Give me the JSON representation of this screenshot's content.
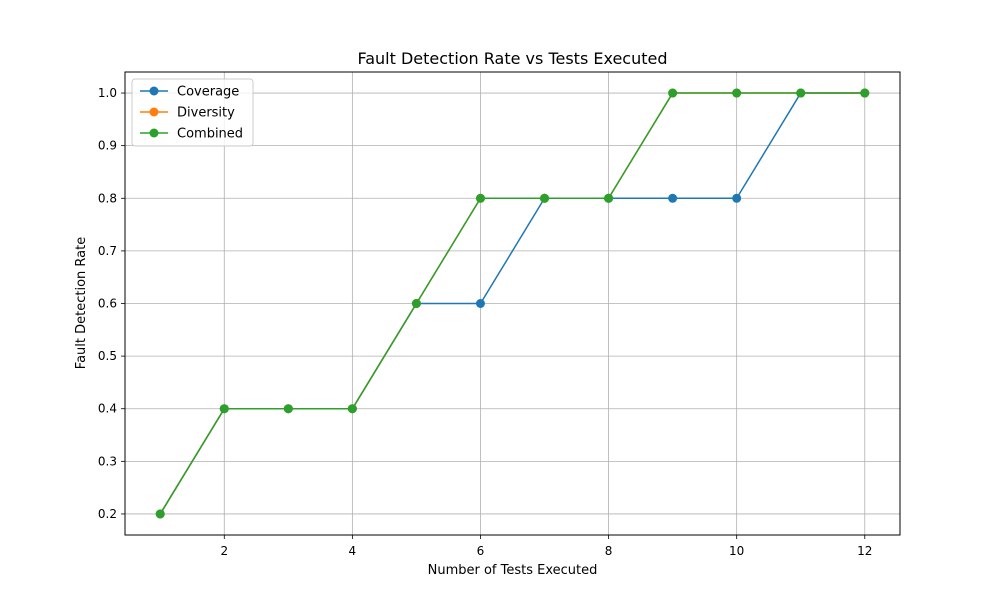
{
  "chart_data": {
    "type": "line",
    "title": "Fault Detection Rate vs Tests Executed",
    "xlabel": "Number of Tests Executed",
    "ylabel": "Fault Detection Rate",
    "x": [
      1,
      2,
      3,
      4,
      5,
      6,
      7,
      8,
      9,
      10,
      11,
      12
    ],
    "xlim": [
      0.45,
      12.55
    ],
    "ylim": [
      0.16,
      1.04
    ],
    "xticks": [
      2,
      4,
      6,
      8,
      10,
      12
    ],
    "xtick_labels": [
      "2",
      "4",
      "6",
      "8",
      "10",
      "12"
    ],
    "yticks": [
      0.2,
      0.3,
      0.4,
      0.5,
      0.6,
      0.7,
      0.8,
      0.9,
      1.0
    ],
    "ytick_labels": [
      "0.2",
      "0.3",
      "0.4",
      "0.5",
      "0.6",
      "0.7",
      "0.8",
      "0.9",
      "1.0"
    ],
    "grid": true,
    "legend_position": "top-left",
    "series": [
      {
        "name": "Coverage",
        "color": "#1f77b4",
        "values": [
          0.2,
          0.4,
          0.4,
          0.4,
          0.6,
          0.6,
          0.8,
          0.8,
          0.8,
          0.8,
          1.0,
          1.0
        ]
      },
      {
        "name": "Diversity",
        "color": "#ff7f0e",
        "values": [
          0.2,
          0.4,
          0.4,
          0.4,
          0.6,
          0.8,
          0.8,
          0.8,
          1.0,
          1.0,
          1.0,
          1.0
        ]
      },
      {
        "name": "Combined",
        "color": "#2ca02c",
        "values": [
          0.2,
          0.4,
          0.4,
          0.4,
          0.6,
          0.8,
          0.8,
          0.8,
          1.0,
          1.0,
          1.0,
          1.0
        ]
      }
    ]
  }
}
